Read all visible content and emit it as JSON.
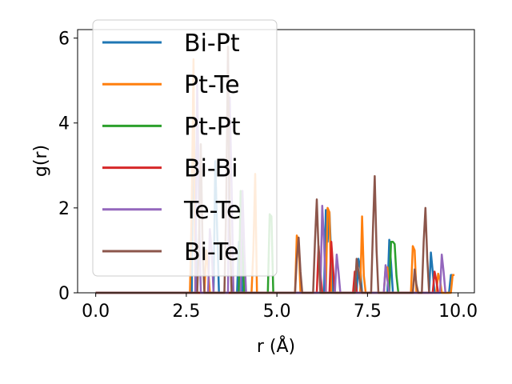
{
  "chart_data": {
    "type": "line",
    "xlabel": "r (Å)",
    "ylabel": "g(r)",
    "xlim": [
      -0.5,
      10.45
    ],
    "ylim": [
      0,
      6.2
    ],
    "xticks": [
      "0.0",
      "2.5",
      "5.0",
      "7.5",
      "10.0"
    ],
    "yticks": [
      "0",
      "2",
      "4",
      "6"
    ],
    "grid": false,
    "legend_position": "top-left",
    "series": [
      {
        "name": "Bi-Pt",
        "color": "#1f77b4",
        "x": [
          0,
          2.65,
          2.7,
          2.75,
          2.8,
          3.25,
          3.3,
          3.35,
          3.4,
          3.9,
          3.95,
          4.0,
          4.05,
          6.3,
          6.35,
          6.4,
          6.45,
          6.5,
          6.55,
          7.2,
          7.25,
          7.3,
          7.35,
          8.05,
          8.1,
          8.15,
          8.2,
          9.2,
          9.25,
          9.3,
          9.35,
          9.75,
          9.8,
          9.85
        ],
        "y": [
          0,
          0,
          4.6,
          2.0,
          0,
          0,
          3.1,
          1.5,
          0,
          0,
          1.2,
          0.9,
          0,
          0,
          1.95,
          1.2,
          1.9,
          0.8,
          0,
          0,
          0.8,
          0.6,
          0,
          0,
          1.25,
          0.7,
          0,
          0,
          0.95,
          0.5,
          0,
          0,
          0.42,
          0.42
        ]
      },
      {
        "name": "Pt-Te",
        "color": "#ff7f0e",
        "x": [
          0,
          2.6,
          2.65,
          2.7,
          2.75,
          3.0,
          3.05,
          3.1,
          3.15,
          4.3,
          4.35,
          4.4,
          4.45,
          5.5,
          5.55,
          5.6,
          5.65,
          6.35,
          6.4,
          6.45,
          6.5,
          7.3,
          7.35,
          7.4,
          7.45,
          7.95,
          8.0,
          8.05,
          8.1,
          8.7,
          8.75,
          8.8,
          8.85,
          9.4,
          9.45,
          9.5,
          9.55,
          9.8,
          9.85,
          9.9
        ],
        "y": [
          0,
          0,
          2.0,
          5.5,
          0,
          0,
          1.0,
          0.6,
          0,
          0,
          1.0,
          2.8,
          0,
          0,
          1.35,
          1.2,
          0,
          0,
          2.0,
          1.9,
          0,
          0,
          1.8,
          0.4,
          0,
          0,
          0.6,
          0.6,
          0,
          0,
          1.1,
          1.0,
          0,
          0,
          0.45,
          0.3,
          0,
          0,
          0.42,
          0.42
        ]
      },
      {
        "name": "Pt-Pt",
        "color": "#2ca02c",
        "x": [
          0,
          3.95,
          4.0,
          4.05,
          4.1,
          4.75,
          4.8,
          4.85,
          4.9,
          8.1,
          8.15,
          8.2,
          8.25,
          8.3,
          8.35
        ],
        "y": [
          0,
          0,
          2.4,
          1.0,
          0,
          0,
          1.85,
          1.8,
          0,
          0,
          1.2,
          1.2,
          1.15,
          0.4,
          0
        ]
      },
      {
        "name": "Bi-Bi",
        "color": "#d62728",
        "x": [
          0,
          6.1,
          6.15,
          6.2,
          6.25,
          6.45,
          6.5,
          6.55,
          6.6,
          7.1,
          7.15,
          7.2,
          9.3,
          9.35,
          9.4,
          9.45
        ],
        "y": [
          0,
          0,
          1.1,
          0.5,
          0,
          0,
          1.2,
          0.6,
          0,
          0,
          0.5,
          0,
          0,
          0.5,
          0.3,
          0
        ]
      },
      {
        "name": "Te-Te",
        "color": "#9467bd",
        "x": [
          0,
          2.75,
          2.8,
          2.85,
          2.9,
          3.1,
          3.15,
          3.2,
          3.25,
          3.65,
          3.7,
          3.75,
          3.8,
          4.0,
          4.05,
          4.1,
          4.15,
          6.2,
          6.25,
          6.3,
          6.35,
          6.6,
          6.65,
          6.7,
          6.75,
          7.95,
          8.0,
          8.05,
          8.1,
          9.5,
          9.55,
          9.6,
          9.65
        ],
        "y": [
          0,
          0,
          5.0,
          2.0,
          0,
          0,
          1.5,
          1.0,
          0,
          0,
          4.6,
          2.5,
          0,
          0,
          2.4,
          1.0,
          0,
          0,
          2.05,
          1.2,
          0,
          0,
          0.9,
          0.5,
          0,
          0,
          0.65,
          0.3,
          0,
          0,
          0.9,
          0.5,
          0
        ]
      },
      {
        "name": "Bi-Te",
        "color": "#8c564b",
        "x": [
          0,
          2.8,
          2.85,
          2.9,
          2.95,
          3.0,
          3.55,
          3.6,
          3.65,
          3.7,
          3.75,
          5.5,
          5.55,
          5.6,
          5.65,
          5.7,
          6.0,
          6.05,
          6.1,
          6.15,
          6.2,
          7.15,
          7.2,
          7.25,
          7.3,
          7.35,
          7.6,
          7.65,
          7.7,
          7.75,
          7.8,
          8.75,
          8.8,
          8.85,
          8.9,
          9.0,
          9.05,
          9.1,
          9.15,
          9.2
        ],
        "y": [
          0,
          0,
          1.2,
          3.5,
          1.0,
          0,
          0,
          2.0,
          5.8,
          1.5,
          0,
          0,
          0.8,
          1.3,
          0.5,
          0,
          0,
          1.2,
          2.2,
          1.0,
          0,
          0,
          0.8,
          0.5,
          0.2,
          0,
          0,
          1.5,
          2.75,
          1.0,
          0,
          0,
          0.55,
          0.2,
          0,
          0,
          1.2,
          2.0,
          0.8,
          0
        ]
      }
    ]
  }
}
